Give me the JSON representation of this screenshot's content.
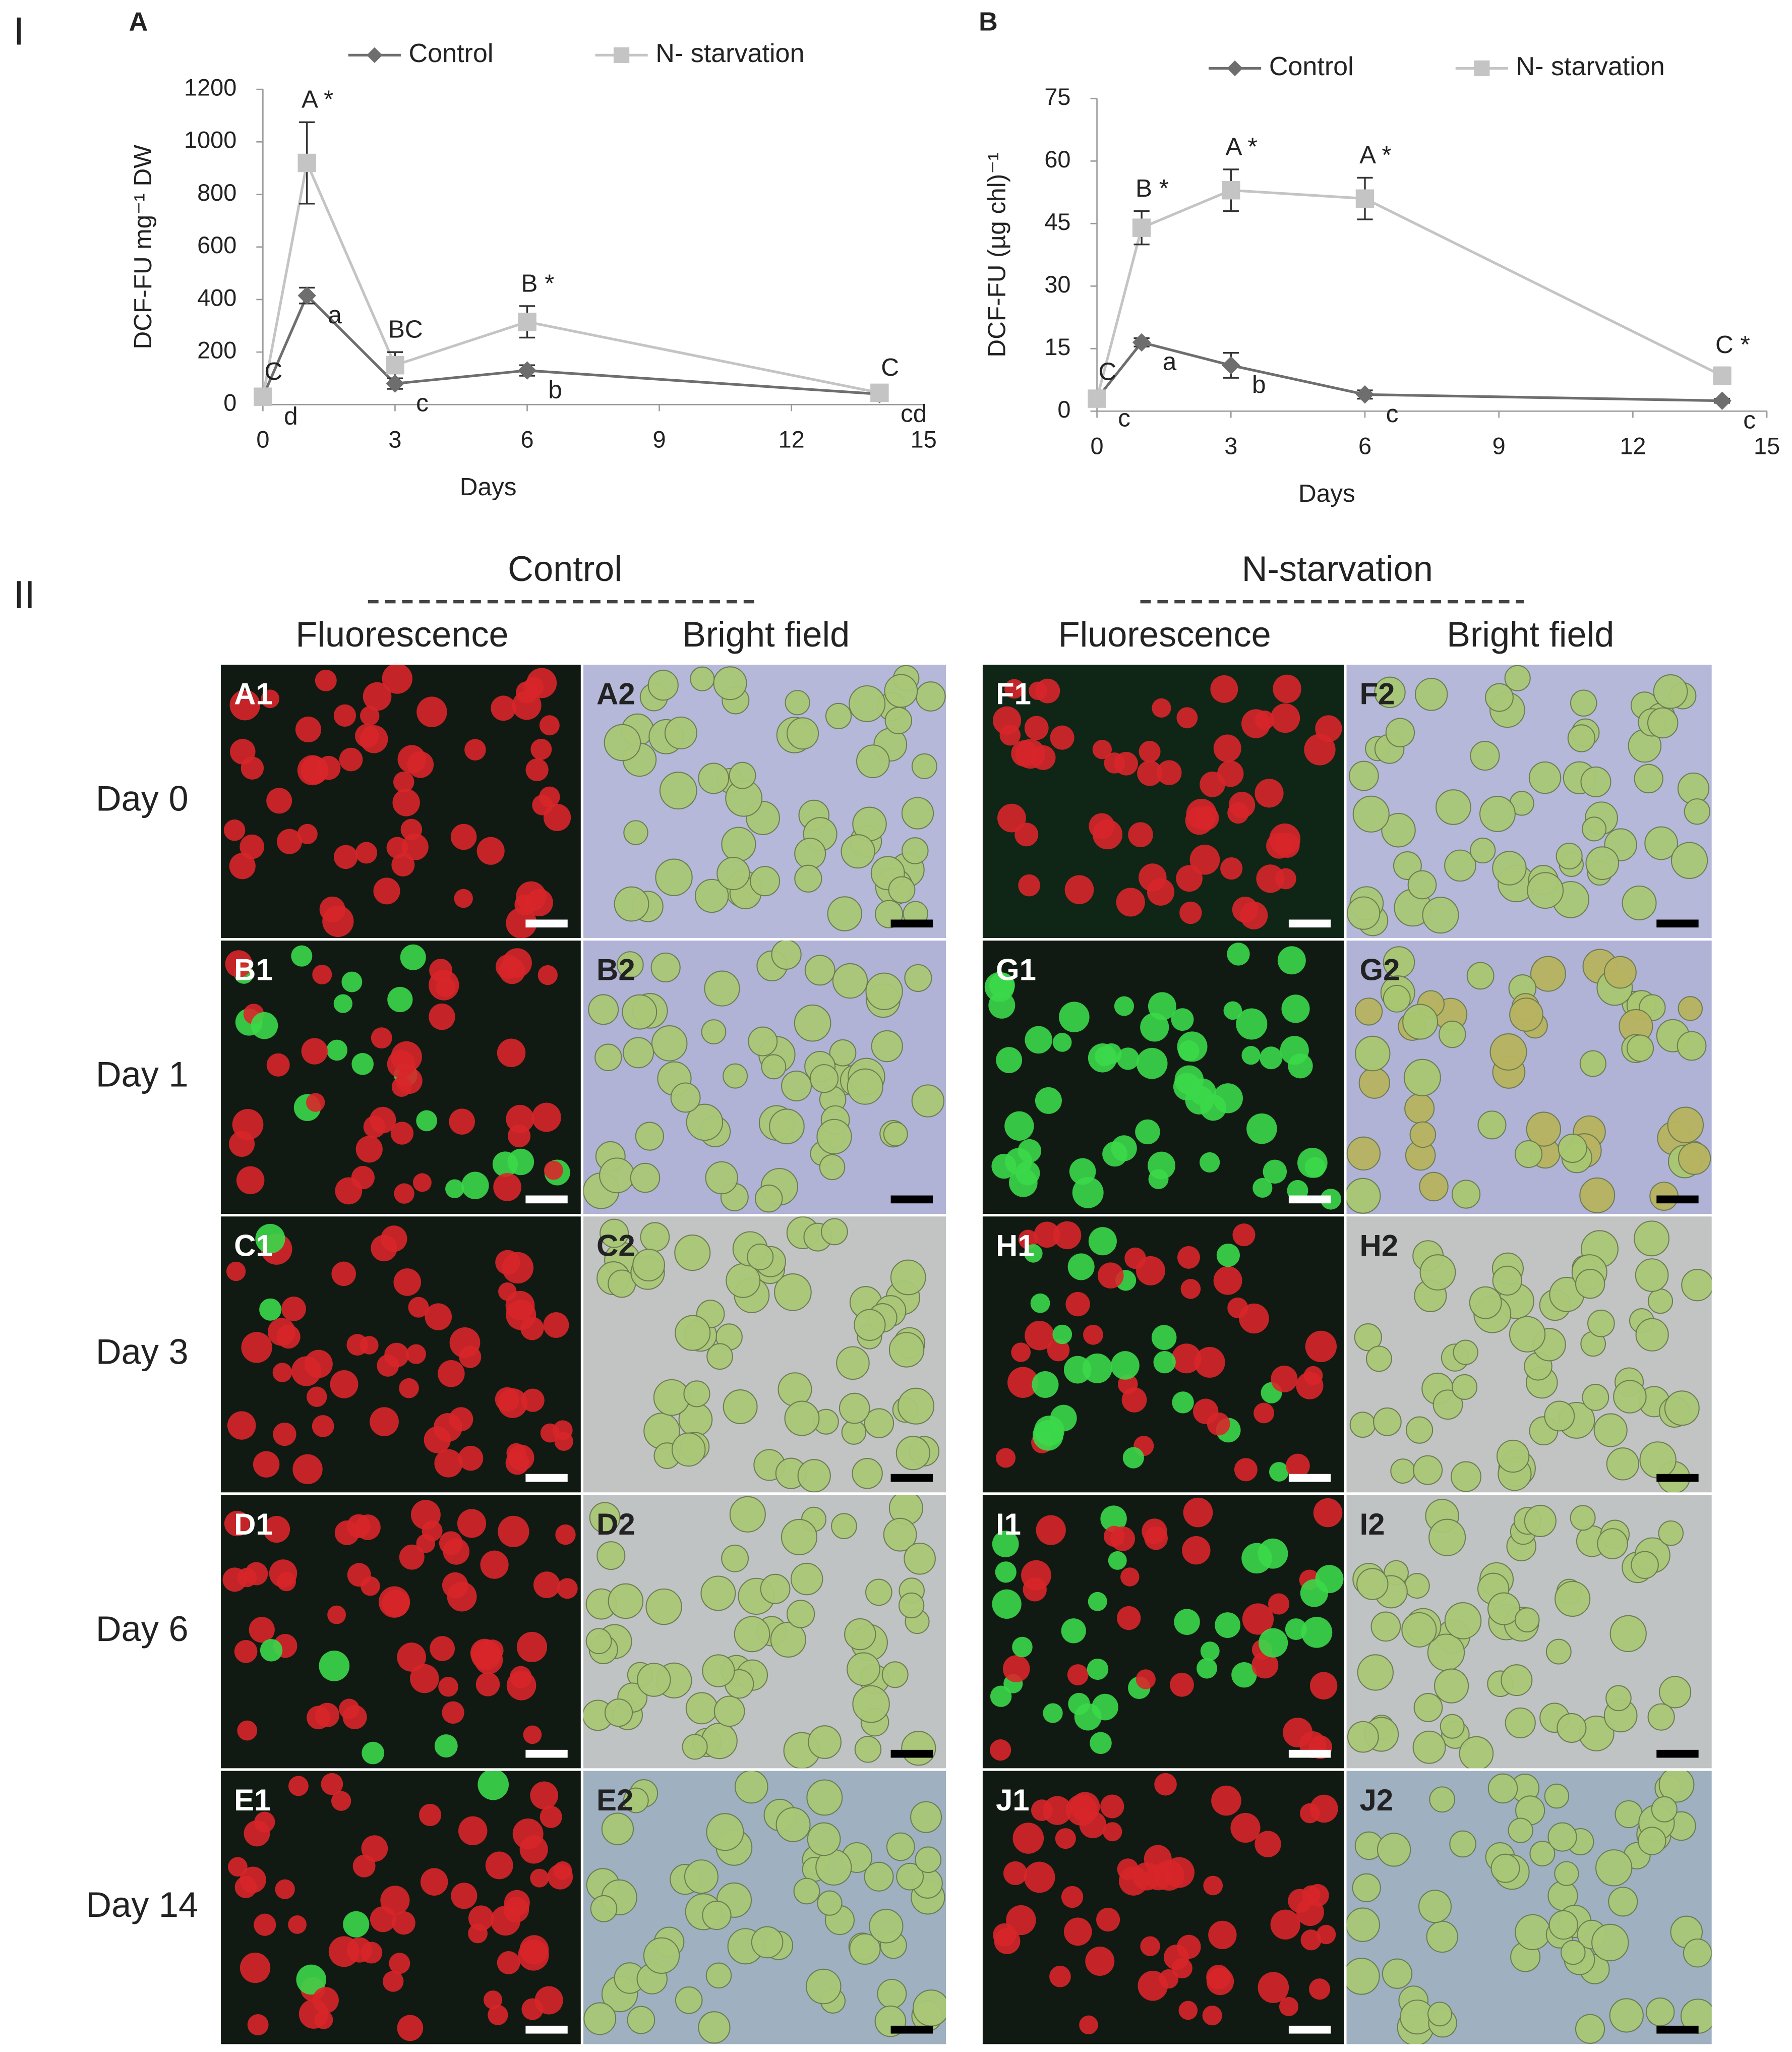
{
  "chart_data": [
    {
      "type": "line",
      "label": "A",
      "x_label": "Days",
      "y_label": "DCF-FU mg⁻¹ DW",
      "x": [
        0,
        1,
        3,
        6,
        14
      ],
      "xlim": [
        0,
        15
      ],
      "xticks": [
        0,
        3,
        6,
        9,
        12,
        15
      ],
      "ylim": [
        0,
        1200
      ],
      "yticks": [
        0,
        200,
        400,
        600,
        800,
        1000,
        1200
      ],
      "series": [
        {
          "name": "Control",
          "color": "#6e6e6e",
          "marker": "diamond",
          "values": [
            30,
            415,
            80,
            130,
            40
          ],
          "errors": [
            10,
            30,
            20,
            20,
            5
          ],
          "point_labels": [
            "d",
            "a",
            "c",
            "b",
            "cd"
          ]
        },
        {
          "name": "N- starvation",
          "color": "#c4c4c4",
          "marker": "square",
          "values": [
            30,
            920,
            150,
            315,
            45
          ],
          "errors": [
            10,
            155,
            50,
            60,
            10
          ],
          "point_labels": [
            "C",
            "A *",
            "BC",
            "B *",
            "C"
          ]
        }
      ]
    },
    {
      "type": "line",
      "label": "B",
      "x_label": "Days",
      "y_label": "DCF-FU (µg chl)⁻¹",
      "x": [
        0,
        1,
        3,
        6,
        14
      ],
      "xlim": [
        0,
        15
      ],
      "xticks": [
        0,
        3,
        6,
        9,
        12,
        15
      ],
      "ylim": [
        0,
        75
      ],
      "yticks": [
        0,
        15,
        30,
        45,
        60,
        75
      ],
      "series": [
        {
          "name": "Control",
          "color": "#6e6e6e",
          "marker": "diamond",
          "values": [
            3,
            16.5,
            11,
            4,
            2.5
          ],
          "errors": [
            1,
            1,
            3,
            1,
            0.5
          ],
          "point_labels": [
            "c",
            "a",
            "b",
            "c",
            "c"
          ]
        },
        {
          "name": "N- starvation",
          "color": "#c4c4c4",
          "marker": "square",
          "values": [
            3,
            44,
            53,
            51,
            8.5
          ],
          "errors": [
            1,
            4,
            5,
            5,
            2
          ],
          "point_labels": [
            "C",
            "B *",
            "A *",
            "A *",
            "C *"
          ]
        }
      ]
    }
  ],
  "sections": [
    "I",
    "II"
  ],
  "micrographs": {
    "groups": [
      {
        "title": "Control",
        "columns": [
          "Fluorescence",
          "Bright field"
        ]
      },
      {
        "title": "N-starvation",
        "columns": [
          "Fluorescence",
          "Bright field"
        ]
      }
    ],
    "rows": [
      "Day 0",
      "Day 1",
      "Day 3",
      "Day 6",
      "Day 14"
    ],
    "panels": [
      [
        "A1",
        "A2",
        "F1",
        "F2"
      ],
      [
        "B1",
        "B2",
        "G1",
        "G2"
      ],
      [
        "C1",
        "C2",
        "H1",
        "H2"
      ],
      [
        "D1",
        "D2",
        "I1",
        "I2"
      ],
      [
        "E1",
        "E2",
        "J1",
        "J2"
      ]
    ]
  }
}
